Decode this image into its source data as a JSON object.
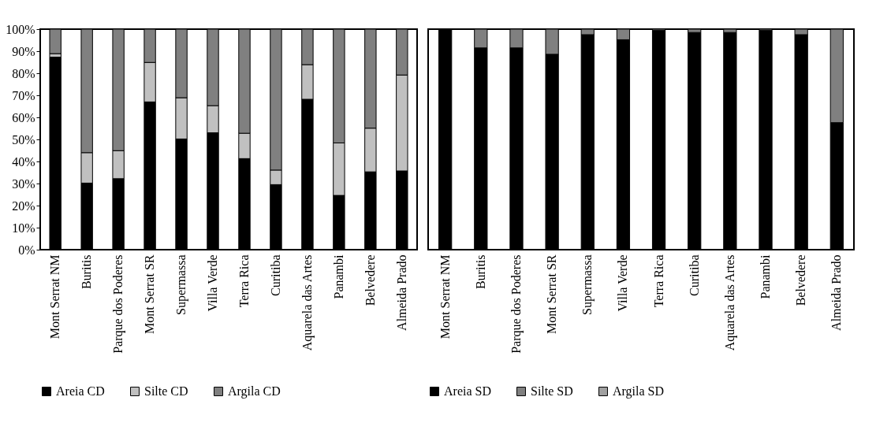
{
  "chart_data": [
    {
      "type": "bar",
      "stacked": true,
      "categories": [
        "Mont Serrat NM",
        "Buritis",
        "Parque dos Poderes",
        "Mont Serrat SR",
        "Supermassa",
        "Villa Verde",
        "Terra Rica",
        "Curitiba",
        "Aquarela das Artes",
        "Panambi",
        "Belvedere",
        "Almeida Prado"
      ],
      "series": [
        {
          "name": "Areia CD",
          "color": "#000000",
          "values": [
            87.3,
            30.2,
            32.2,
            67.0,
            50.2,
            53.0,
            41.3,
            29.5,
            68.2,
            24.6,
            35.3,
            35.7
          ]
        },
        {
          "name": "Silte CD",
          "color": "#c0c0c0",
          "values": [
            1.6,
            13.8,
            12.7,
            17.9,
            18.7,
            12.3,
            11.5,
            6.6,
            15.7,
            23.8,
            19.8,
            43.5
          ]
        },
        {
          "name": "Argila CD",
          "color": "#808080",
          "values": [
            11.1,
            56.0,
            55.1,
            15.1,
            31.1,
            34.7,
            47.2,
            63.9,
            16.1,
            51.6,
            44.9,
            20.8
          ]
        }
      ],
      "ylim": [
        0,
        100
      ],
      "yticks": [
        {
          "value": 0,
          "label": "0%"
        },
        {
          "value": 10,
          "label": "10%"
        },
        {
          "value": 20,
          "label": "20%"
        },
        {
          "value": 30,
          "label": "30%"
        },
        {
          "value": 40,
          "label": "40%"
        },
        {
          "value": 50,
          "label": "50%"
        },
        {
          "value": 60,
          "label": "60%"
        },
        {
          "value": 70,
          "label": "70%"
        },
        {
          "value": 80,
          "label": "80%"
        },
        {
          "value": 90,
          "label": "90%"
        },
        {
          "value": 100,
          "label": "100%"
        }
      ],
      "legend": "bottom"
    },
    {
      "type": "bar",
      "stacked": true,
      "categories": [
        "Mont Serrat NM",
        "Buritis",
        "Parque dos Poderes",
        "Mont Serrat SR",
        "Supermassa",
        "Villa Verde",
        "Terra Rica",
        "Curitiba",
        "Aquarela das Artes",
        "Panambi",
        "Belvedere",
        "Almeida Prado"
      ],
      "series": [
        {
          "name": "Areia SD",
          "color": "#000000",
          "values": [
            100,
            91.5,
            91.5,
            88.6,
            97.5,
            95.2,
            99.4,
            98.5,
            98.5,
            99.4,
            97.5,
            57.6
          ]
        },
        {
          "name": "Silte SD",
          "color": "#808080",
          "values": [
            null,
            8.5,
            8.5,
            11.4,
            2.5,
            4.8,
            0.6,
            1.5,
            1.5,
            0.6,
            2.5,
            42.4
          ]
        },
        {
          "name": "Argila SD",
          "color": "#a0a0a0",
          "values": [
            null,
            null,
            null,
            null,
            null,
            null,
            null,
            null,
            null,
            null,
            null,
            null
          ]
        }
      ],
      "ylim": [
        0,
        100
      ],
      "tick_labels": "x",
      "legend": "bottom"
    }
  ]
}
